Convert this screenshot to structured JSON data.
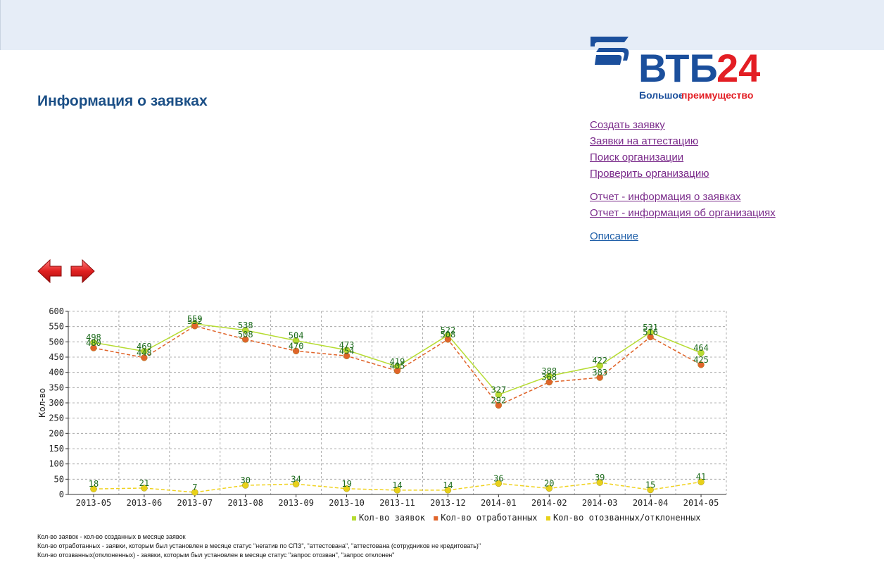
{
  "page": {
    "title": "Информация о заявках"
  },
  "brand": {
    "name": "ВТБ24",
    "tagline_part1": "Большое",
    "tagline_part2": "преимущество",
    "color_blue": "#1b4f9c",
    "color_red": "#e31e24"
  },
  "nav": {
    "create": "Создать заявку",
    "attestation": "Заявки на аттестацию",
    "search_org": "Поиск организации",
    "check_org": "Проверить организацию",
    "report_requests": "Отчет - информация о заявках",
    "report_orgs": "Отчет - информация об организациях",
    "description": "Описание"
  },
  "arrows": {
    "prev_icon": "arrow-left-icon",
    "next_icon": "arrow-right-icon"
  },
  "chart_data": {
    "type": "line",
    "ylabel": "Кол-во",
    "ylim": [
      0,
      600
    ],
    "yticks": [
      0,
      50,
      100,
      150,
      200,
      250,
      300,
      350,
      400,
      450,
      500,
      550,
      600
    ],
    "categories": [
      "2013-05",
      "2013-06",
      "2013-07",
      "2013-08",
      "2013-09",
      "2013-10",
      "2013-11",
      "2013-12",
      "2014-01",
      "2014-02",
      "2014-03",
      "2014-04",
      "2014-05"
    ],
    "grid": true,
    "legend_position": "bottom-right",
    "series": [
      {
        "name": "Кол-во заявок",
        "color": "#b6dc32",
        "dash": false,
        "marker": "#b6dc32",
        "values": [
          498,
          469,
          559,
          538,
          504,
          473,
          419,
          522,
          327,
          388,
          422,
          531,
          464
        ]
      },
      {
        "name": "Кол-во отработанных",
        "color": "#e0642a",
        "dash": true,
        "marker": "#e0642a",
        "values": [
          480,
          448,
          552,
          508,
          470,
          454,
          405,
          508,
          292,
          368,
          383,
          516,
          425
        ]
      },
      {
        "name": "Кол-во отозванных/отклоненных",
        "color": "#f0d21e",
        "dash": true,
        "marker": "#e8d11a",
        "values": [
          18,
          21,
          7,
          30,
          34,
          19,
          14,
          14,
          36,
          20,
          39,
          15,
          41
        ]
      }
    ]
  },
  "notes": [
    "Кол-во заявок - кол-во созданных в месяце заявок",
    "Кол-во отработанных - заявки, которым был установлен в месяце статус \"негатив по СПЗ\", \"аттестована\", \"аттестована (сотрудников не кредитовать)\"",
    "Кол-во отозванных(отклоненных) - заявки, которым был установлен в месяце статус \"запрос отозван\", \"запрос отклонен\""
  ]
}
